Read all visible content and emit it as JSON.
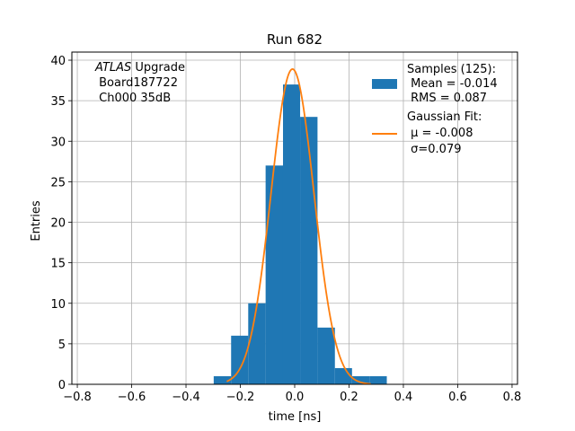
{
  "chart_data": {
    "type": "bar",
    "title": "Run 682",
    "xlabel": "time [ns]",
    "ylabel": "Entries",
    "xlim": [
      -0.82,
      0.82
    ],
    "ylim": [
      0,
      41
    ],
    "x_ticks": [
      -0.8,
      -0.6,
      -0.4,
      -0.2,
      0.0,
      0.2,
      0.4,
      0.6,
      0.8
    ],
    "x_tick_labels": [
      "−0.8",
      "−0.6",
      "−0.4",
      "−0.2",
      "0.0",
      "0.2",
      "0.4",
      "0.6",
      "0.8"
    ],
    "y_ticks": [
      0,
      5,
      10,
      15,
      20,
      25,
      30,
      35,
      40
    ],
    "y_tick_labels": [
      "0",
      "5",
      "10",
      "15",
      "20",
      "25",
      "30",
      "35",
      "40"
    ],
    "grid": true,
    "bin_edges": [
      -0.298,
      -0.234,
      -0.171,
      -0.107,
      -0.043,
      0.02,
      0.084,
      0.148,
      0.211,
      0.275,
      0.339
    ],
    "bin_counts": [
      1,
      6,
      10,
      27,
      37,
      33,
      7,
      2,
      1,
      1
    ],
    "series": [
      {
        "name": "Samples (125):",
        "kind": "histogram",
        "color": "#1f77b4"
      },
      {
        "name": "Gaussian Fit:",
        "kind": "line",
        "color": "#ff7f0e",
        "amplitude": 38.9,
        "mu": -0.008,
        "sigma": 0.079,
        "x_range": [
          -0.25,
          0.28
        ]
      }
    ],
    "legend": {
      "placement": "top-right",
      "entries": [
        {
          "lines": [
            "Samples (125):",
            " Mean = -0.014",
            " RMS = 0.087"
          ]
        },
        {
          "lines": [
            "Gaussian Fit:",
            " μ = -0.008",
            " σ=0.079"
          ]
        }
      ]
    },
    "annotation": {
      "line1_italic": "ATLAS",
      "line1_rest": " Upgrade",
      "line2": " Board187722",
      "line3": " Ch000 35dB"
    }
  }
}
